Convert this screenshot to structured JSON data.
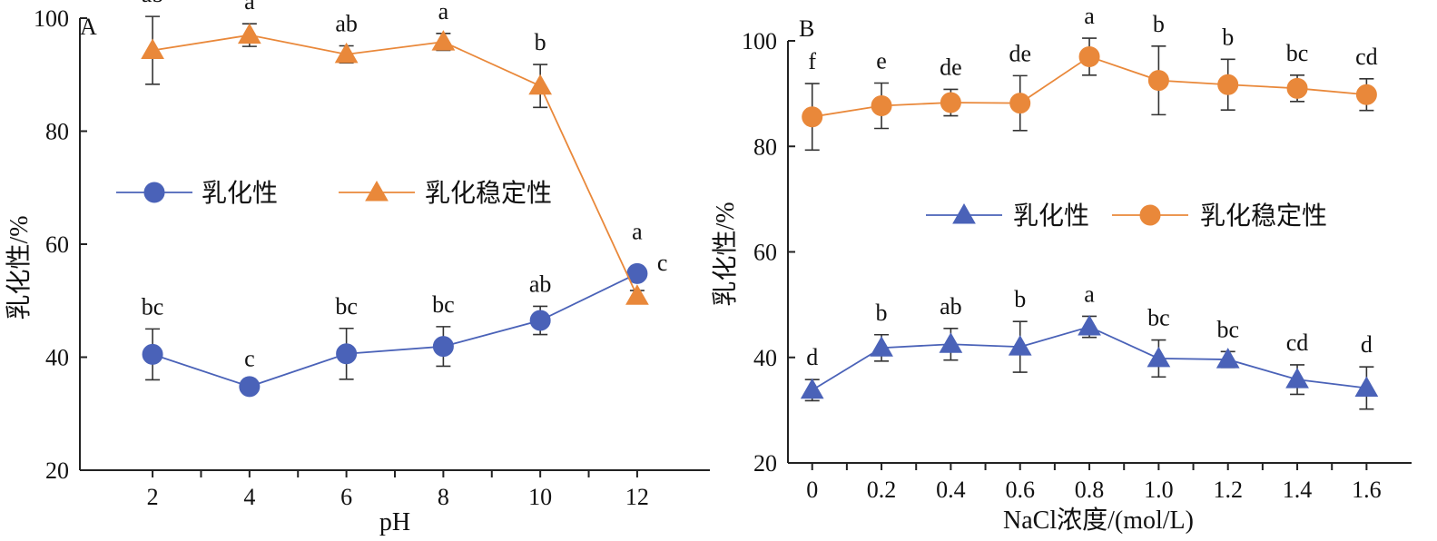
{
  "chart_data": [
    {
      "type": "line",
      "panel_label": "A",
      "xlabel": "pH",
      "ylabel": "乳化性/%",
      "categories": [
        "2",
        "4",
        "6",
        "8",
        "10",
        "12"
      ],
      "x": [
        2,
        4,
        6,
        8,
        10,
        12
      ],
      "xlim": [
        0.5,
        13.5
      ],
      "ylim": [
        20,
        100
      ],
      "yticks": [
        20,
        40,
        60,
        80,
        100
      ],
      "legend_position": "middle-left",
      "series": [
        {
          "name": "乳化性",
          "marker": "circle",
          "color": "#4a62b8",
          "values": [
            40.5,
            34.8,
            40.6,
            41.9,
            46.5,
            54.8
          ],
          "errors": [
            4.5,
            1.0,
            4.5,
            3.5,
            2.5,
            1.0
          ],
          "labels": [
            "bc",
            "c",
            "bc",
            "bc",
            "ab",
            "a"
          ]
        },
        {
          "name": "乳化稳定性",
          "marker": "triangle",
          "color": "#e9883a",
          "values": [
            94.3,
            97.0,
            93.6,
            95.8,
            88.0,
            50.8
          ],
          "errors": [
            6.0,
            2.0,
            1.5,
            1.5,
            3.8,
            1.0
          ],
          "labels": [
            "ab",
            "a",
            "ab",
            "a",
            "b",
            "c"
          ]
        }
      ]
    },
    {
      "type": "line",
      "panel_label": "B",
      "xlabel": "NaCl浓度/(mol/L)",
      "ylabel": "乳化性/%",
      "categories": [
        "0",
        "0.2",
        "0.4",
        "0.6",
        "0.8",
        "1.0",
        "1.2",
        "1.4",
        "1.6"
      ],
      "x": [
        0,
        0.2,
        0.4,
        0.6,
        0.8,
        1.0,
        1.2,
        1.4,
        1.6
      ],
      "xlim": [
        -0.07,
        1.73
      ],
      "ylim": [
        20,
        100
      ],
      "yticks": [
        20,
        40,
        60,
        80,
        100
      ],
      "legend_position": "middle",
      "series": [
        {
          "name": "乳化性",
          "marker": "triangle",
          "color": "#4a62b8",
          "values": [
            33.8,
            41.8,
            42.5,
            42.0,
            45.8,
            39.8,
            39.6,
            35.8,
            34.2
          ],
          "errors": [
            2.0,
            2.5,
            3.0,
            4.8,
            2.0,
            3.5,
            1.5,
            2.8,
            4.0
          ],
          "labels": [
            "d",
            "b",
            "ab",
            "b",
            "a",
            "bc",
            "bc",
            "cd",
            "d"
          ]
        },
        {
          "name": "乳化稳定性",
          "marker": "circle",
          "color": "#e9883a",
          "values": [
            85.6,
            87.7,
            88.3,
            88.2,
            97.0,
            92.5,
            91.7,
            91.0,
            89.8
          ],
          "errors": [
            6.3,
            4.3,
            2.5,
            5.2,
            3.5,
            6.5,
            4.8,
            2.5,
            3.0
          ],
          "labels": [
            "f",
            "e",
            "de",
            "de",
            "a",
            "b",
            "b",
            "bc",
            "cd"
          ]
        }
      ]
    }
  ]
}
